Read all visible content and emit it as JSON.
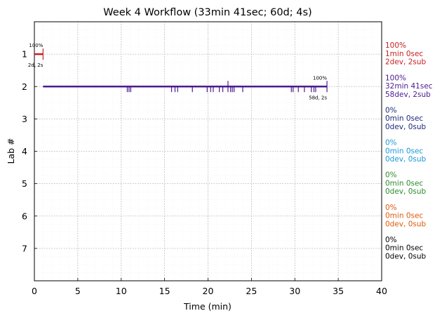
{
  "chart_data": {
    "type": "timeline",
    "title": "Week 4 Workflow (33min 41sec; 60d; 4s)",
    "xlabel": "Time (min)",
    "ylabel": "Lab #",
    "xlim": [
      0,
      40
    ],
    "ylim": [
      8,
      0
    ],
    "xticks": [
      0,
      5,
      10,
      15,
      20,
      25,
      30,
      35,
      40
    ],
    "yticks": [
      1,
      2,
      3,
      4,
      5,
      6,
      7
    ],
    "grid": true,
    "labs": [
      {
        "lab": 1,
        "color": "#c42121",
        "start": 0,
        "end": 1.0,
        "pct_label": "100%",
        "count_label": "2d, 2s",
        "events": [],
        "submissions": [
          1.0
        ],
        "summary": [
          "100%",
          "1min 0sec",
          "2dev, 2sub"
        ]
      },
      {
        "lab": 2,
        "color": "#4b1a92",
        "start": 1.0,
        "end": 33.7,
        "pct_label": "100%",
        "count_label": "58d, 2s",
        "events": [
          10.7,
          10.9,
          11.1,
          15.8,
          16.2,
          16.5,
          18.2,
          19.9,
          20.3,
          20.6,
          21.3,
          21.7,
          22.6,
          22.8,
          23.0,
          24.0,
          29.6,
          29.8,
          30.4,
          31.1,
          31.9,
          32.2,
          32.4
        ],
        "submissions": [
          22.3,
          33.7
        ],
        "summary": [
          "100%",
          "32min 41sec",
          "58dev, 2sub"
        ]
      },
      {
        "lab": 3,
        "color": "#1c2a7a",
        "summary": [
          "0%",
          "0min 0sec",
          "0dev, 0sub"
        ]
      },
      {
        "lab": 4,
        "color": "#1b98d9",
        "summary": [
          "0%",
          "0min 0sec",
          "0dev, 0sub"
        ]
      },
      {
        "lab": 5,
        "color": "#2c8c2c",
        "summary": [
          "0%",
          "0min 0sec",
          "0dev, 0sub"
        ]
      },
      {
        "lab": 6,
        "color": "#de5a0a",
        "summary": [
          "0%",
          "0min 0sec",
          "0dev, 0sub"
        ]
      },
      {
        "lab": 7,
        "color": "#000000",
        "summary": [
          "0%",
          "0min 0sec",
          "0dev, 0sub"
        ]
      }
    ]
  }
}
